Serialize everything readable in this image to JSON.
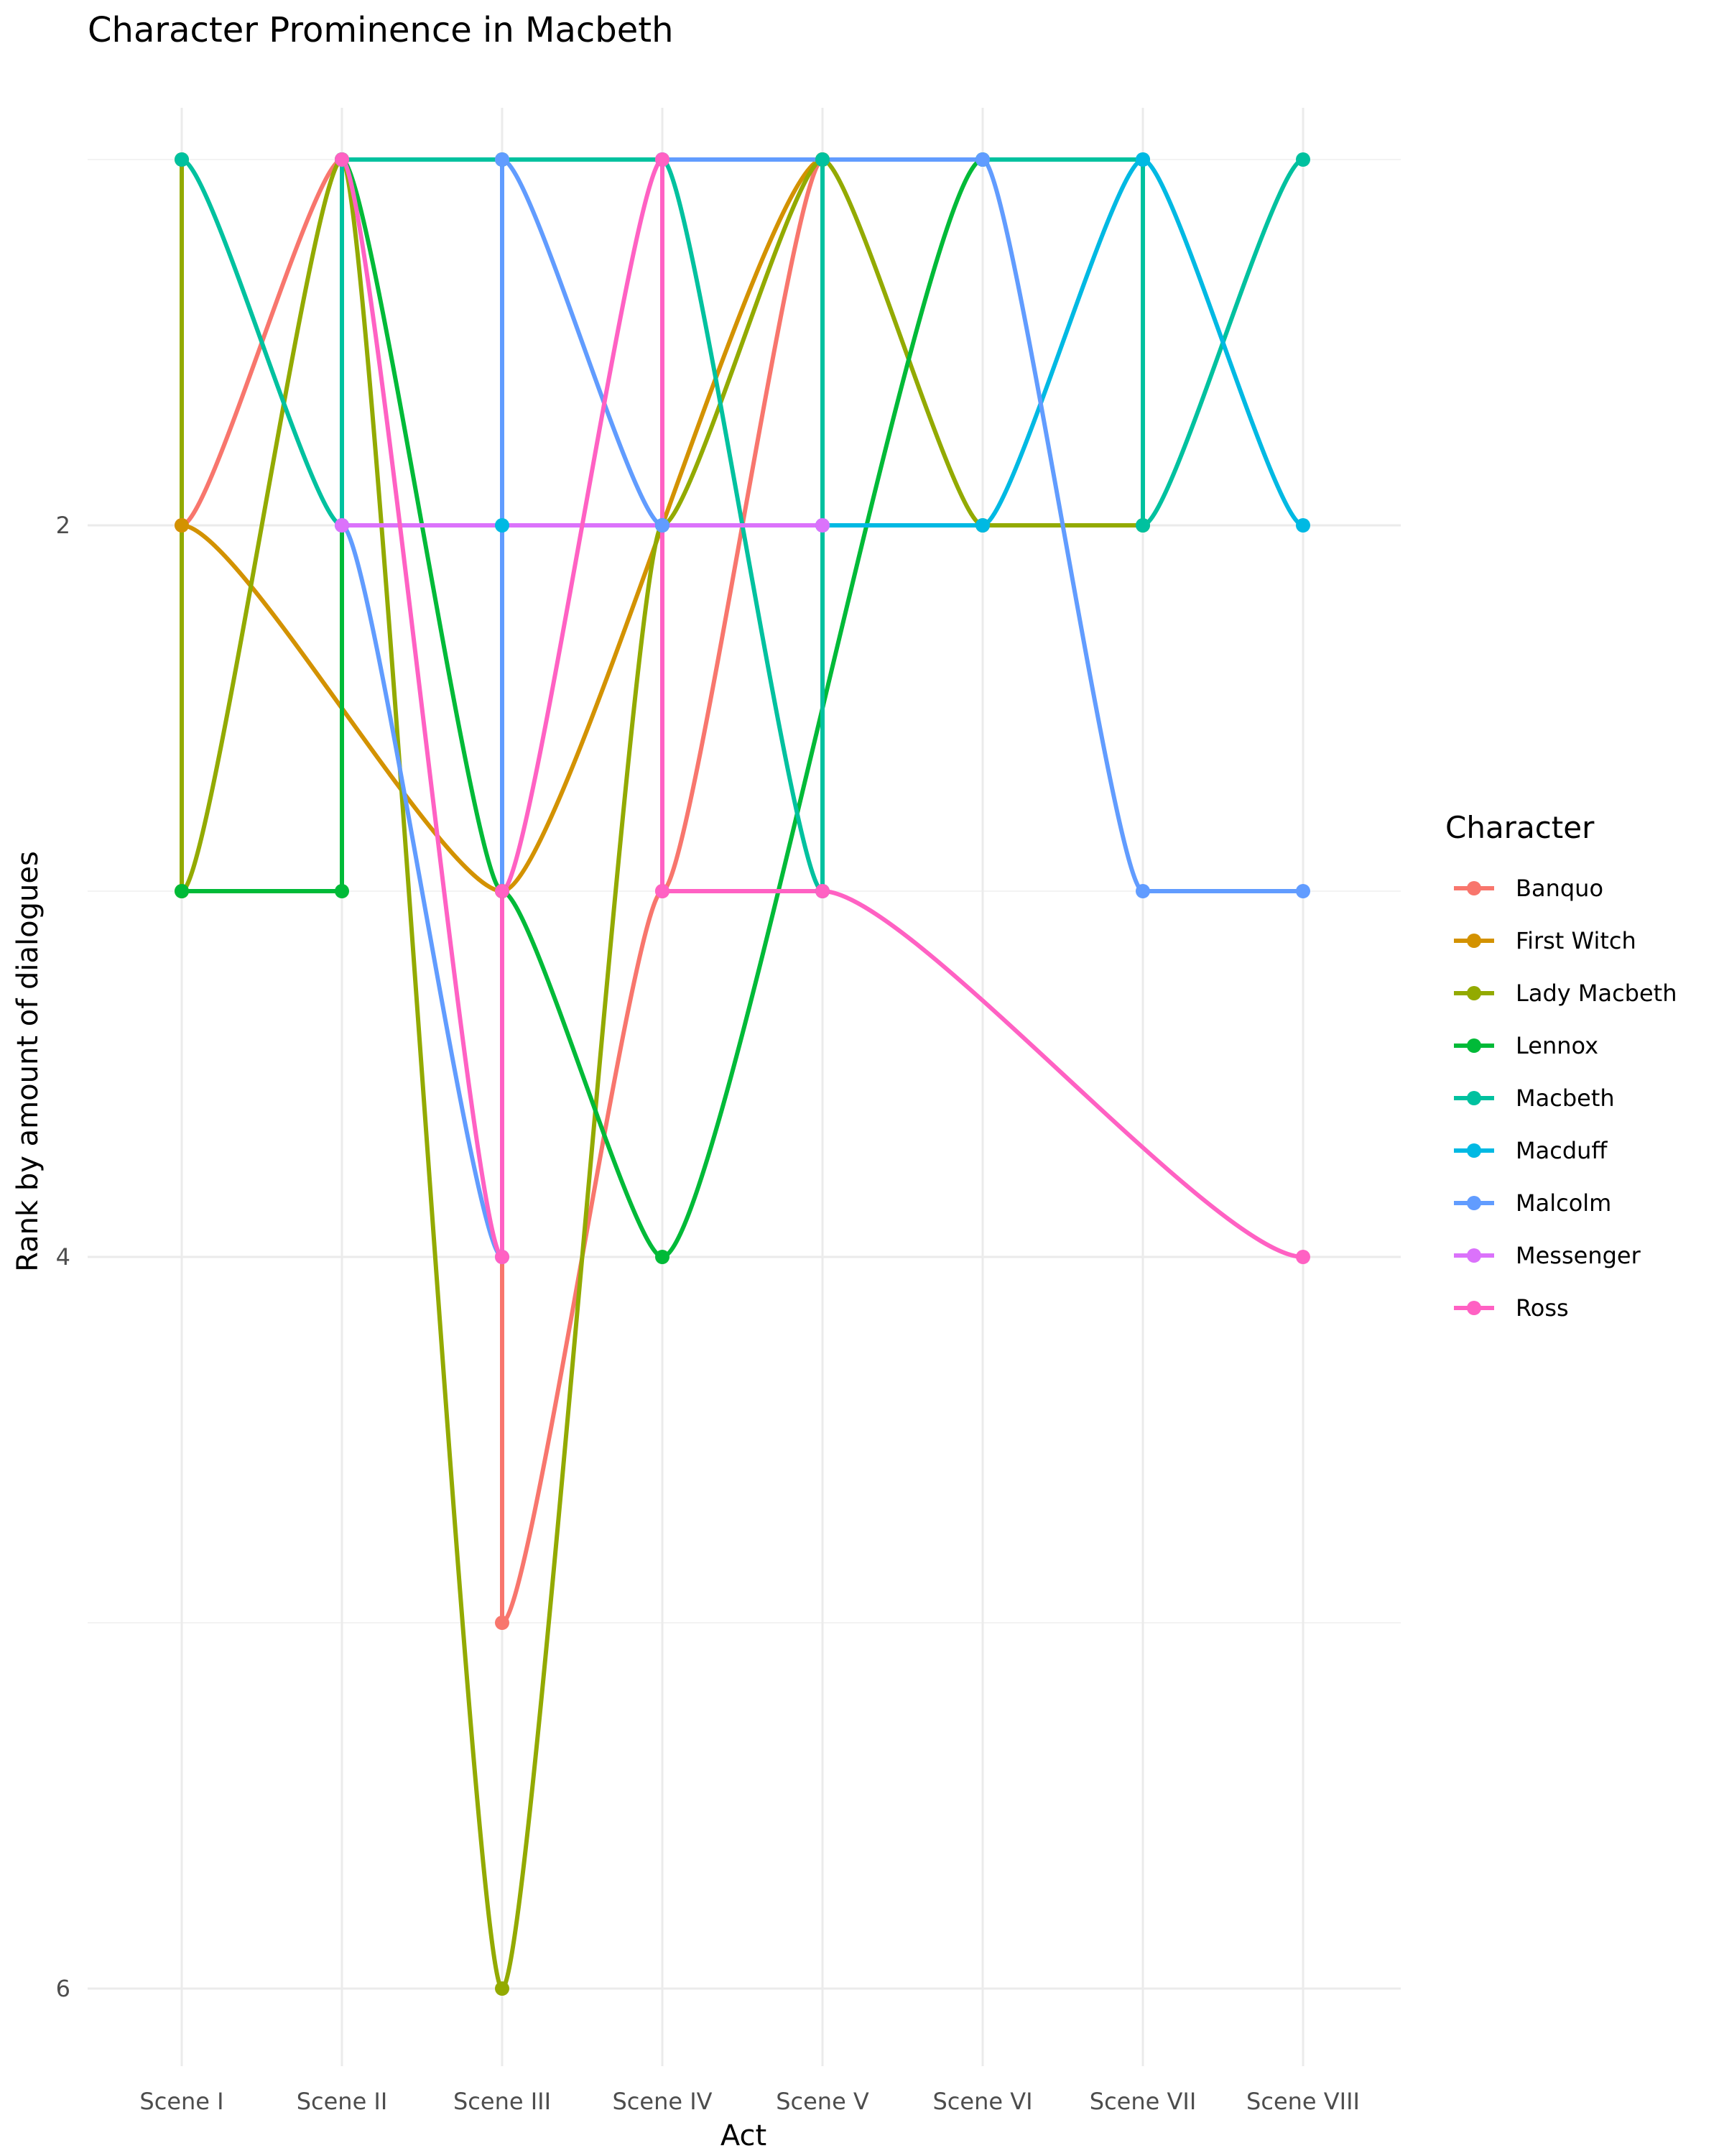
{
  "chart_data": {
    "type": "line",
    "title": "Character Prominence in Macbeth",
    "xlabel": "Act",
    "ylabel": "Rank by amount of dialogues",
    "categories": [
      "Scene I",
      "Scene II",
      "Scene III",
      "Scene IV",
      "Scene V",
      "Scene VI",
      "Scene VII",
      "Scene VIII"
    ],
    "y_ticks": [
      2,
      4,
      6
    ],
    "ylim": [
      6.4,
      0.6
    ],
    "y_reversed": true,
    "grid": true,
    "legend": {
      "title": "Character",
      "position": "right",
      "entries": [
        "Banquo",
        "First Witch",
        "Lady Macbeth",
        "Lennox",
        "Macbeth",
        "Macduff",
        "Malcolm",
        "Messenger",
        "Ross"
      ]
    },
    "series": [
      {
        "name": "Banquo",
        "color": "#F8766D",
        "points": [
          [
            "Scene I",
            2
          ],
          [
            "Scene II",
            1
          ],
          [
            "Scene III",
            1
          ],
          [
            "Scene III",
            5
          ],
          [
            "Scene IV",
            3
          ],
          [
            "Scene V",
            1
          ]
        ]
      },
      {
        "name": "First Witch",
        "color": "#D39200",
        "points": [
          [
            "Scene I",
            2
          ],
          [
            "Scene III",
            3
          ],
          [
            "Scene V",
            1
          ]
        ]
      },
      {
        "name": "Lady Macbeth",
        "color": "#93AA00",
        "points": [
          [
            "Scene I",
            1
          ],
          [
            "Scene I",
            3
          ],
          [
            "Scene II",
            1
          ],
          [
            "Scene III",
            6
          ],
          [
            "Scene IV",
            2
          ],
          [
            "Scene V",
            1
          ],
          [
            "Scene VI",
            2
          ],
          [
            "Scene VII",
            2
          ]
        ]
      },
      {
        "name": "Lennox",
        "color": "#00BA38",
        "points": [
          [
            "Scene I",
            3
          ],
          [
            "Scene II",
            3
          ],
          [
            "Scene II",
            1
          ],
          [
            "Scene III",
            3
          ],
          [
            "Scene IV",
            4
          ],
          [
            "Scene VI",
            1
          ]
        ]
      },
      {
        "name": "Macbeth",
        "color": "#00C19F",
        "points": [
          [
            "Scene I",
            1
          ],
          [
            "Scene II",
            2
          ],
          [
            "Scene II",
            1
          ],
          [
            "Scene III",
            1
          ],
          [
            "Scene IV",
            1
          ],
          [
            "Scene V",
            3
          ],
          [
            "Scene V",
            1
          ],
          [
            "Scene VI",
            1
          ],
          [
            "Scene VII",
            1
          ],
          [
            "Scene VII",
            2
          ],
          [
            "Scene VIII",
            1
          ]
        ]
      },
      {
        "name": "Macduff",
        "color": "#00B9E3",
        "points": [
          [
            "Scene III",
            2
          ],
          [
            "Scene IV",
            2
          ],
          [
            "Scene V",
            2
          ],
          [
            "Scene VI",
            2
          ],
          [
            "Scene VII",
            1
          ],
          [
            "Scene VIII",
            2
          ]
        ]
      },
      {
        "name": "Malcolm",
        "color": "#619CFF",
        "points": [
          [
            "Scene II",
            2
          ],
          [
            "Scene III",
            4
          ],
          [
            "Scene III",
            1
          ],
          [
            "Scene IV",
            2
          ],
          [
            "Scene IV",
            1
          ],
          [
            "Scene VI",
            1
          ],
          [
            "Scene VII",
            3
          ],
          [
            "Scene VIII",
            3
          ]
        ]
      },
      {
        "name": "Messenger",
        "color": "#DB72FB",
        "points": [
          [
            "Scene II",
            2
          ],
          [
            "Scene V",
            2
          ]
        ]
      },
      {
        "name": "Ross",
        "color": "#FF61C3",
        "points": [
          [
            "Scene II",
            1
          ],
          [
            "Scene III",
            4
          ],
          [
            "Scene III",
            3
          ],
          [
            "Scene IV",
            1
          ],
          [
            "Scene IV",
            3
          ],
          [
            "Scene V",
            3
          ],
          [
            "Scene VIII",
            4
          ]
        ]
      }
    ]
  }
}
